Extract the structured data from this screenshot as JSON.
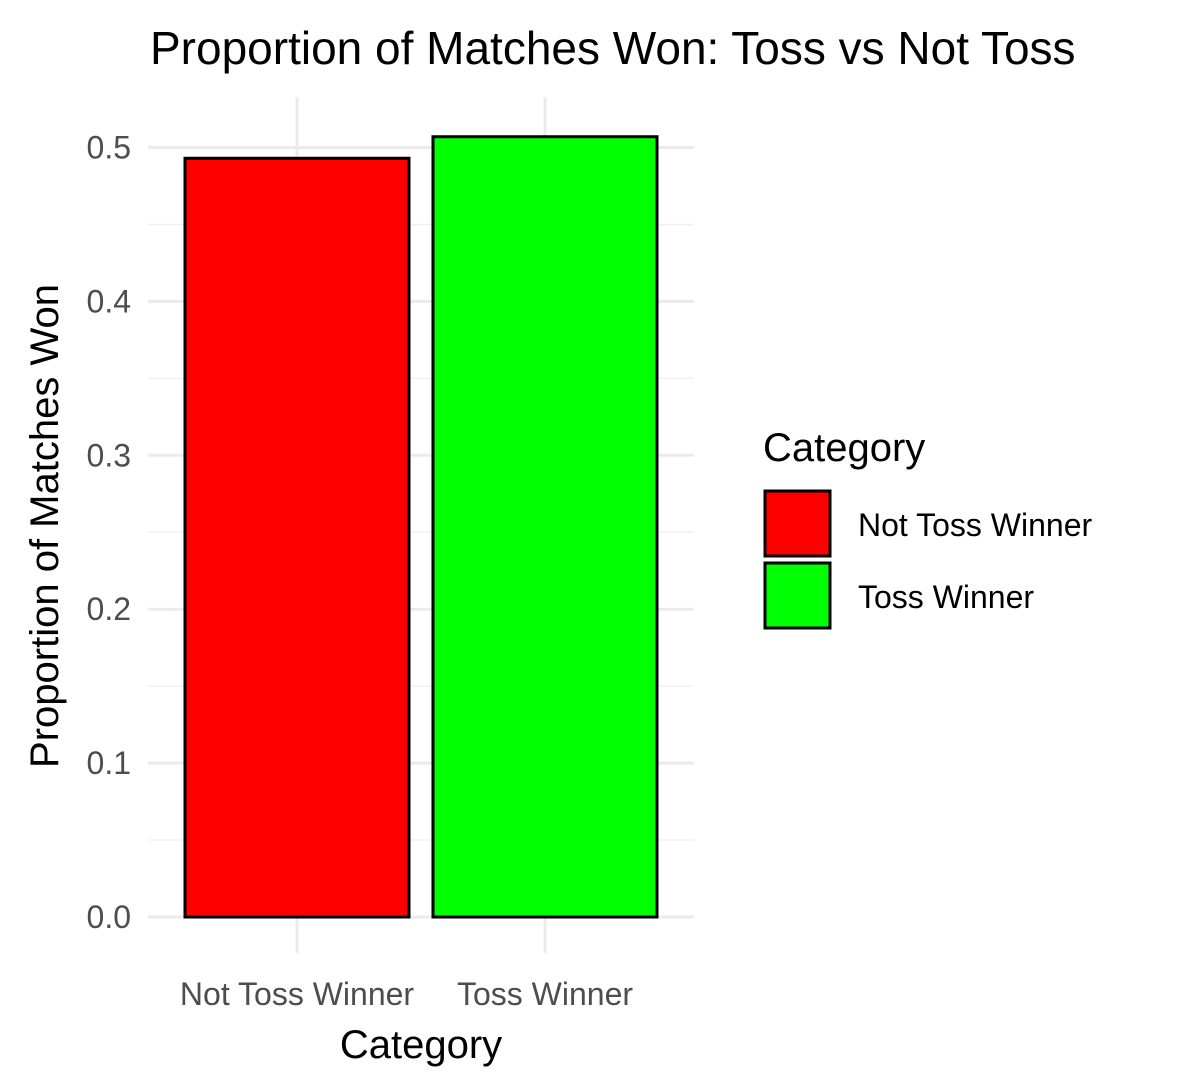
{
  "chart_data": {
    "type": "bar",
    "title": "Proportion of Matches Won: Toss vs Not Toss",
    "xlabel": "Category",
    "ylabel": "Proportion of Matches Won",
    "categories": [
      "Not Toss Winner",
      "Toss Winner"
    ],
    "values": [
      0.493,
      0.507
    ],
    "colors": [
      "#ff0000",
      "#00ff00"
    ],
    "ylim": [
      0,
      0.5
    ],
    "yticks": [
      "0.0",
      "0.1",
      "0.2",
      "0.3",
      "0.4",
      "0.5"
    ],
    "grid": true,
    "legend": {
      "title": "Category",
      "position": "right",
      "entries": [
        "Not Toss Winner",
        "Toss Winner"
      ]
    }
  }
}
